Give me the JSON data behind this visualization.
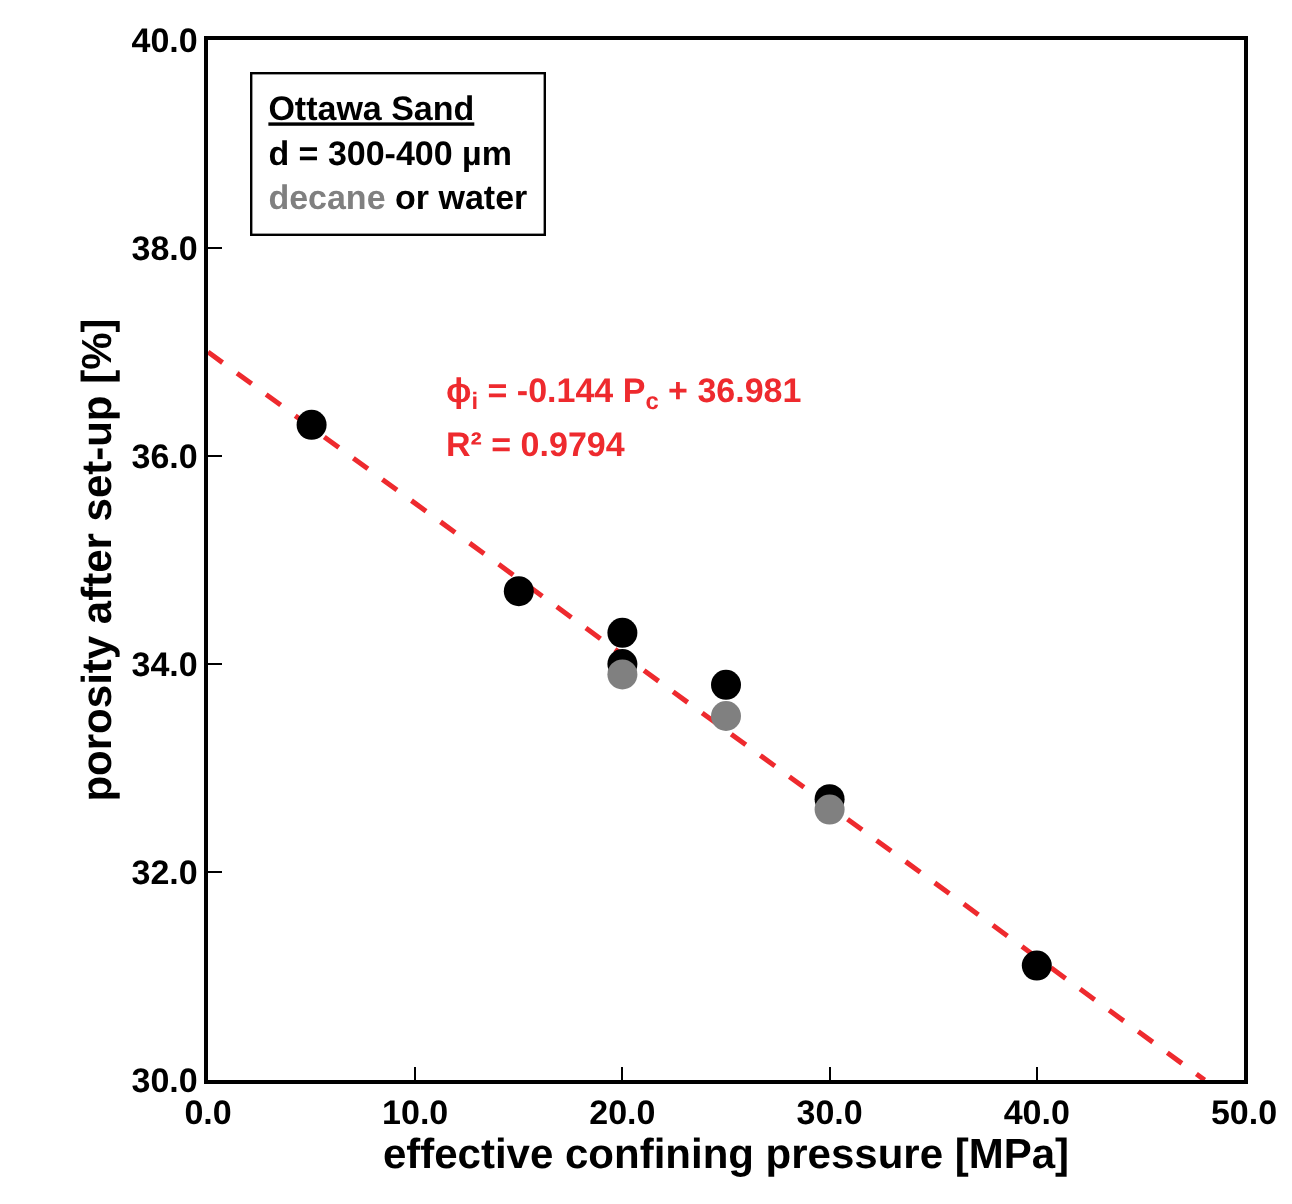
{
  "chart_data": {
    "type": "scatter",
    "xlabel": "effective confining pressure [MPa]",
    "ylabel": "porosity after set-up [%]",
    "xlim": [
      0,
      50
    ],
    "ylim": [
      30,
      40
    ],
    "xticks": [
      {
        "value": 0,
        "label": "0.0"
      },
      {
        "value": 10,
        "label": "10.0"
      },
      {
        "value": 20,
        "label": "20.0"
      },
      {
        "value": 30,
        "label": "30.0"
      },
      {
        "value": 40,
        "label": "40.0"
      },
      {
        "value": 50,
        "label": "50.0"
      }
    ],
    "yticks": [
      {
        "value": 30,
        "label": "30.0"
      },
      {
        "value": 32,
        "label": "32.0"
      },
      {
        "value": 34,
        "label": "34.0"
      },
      {
        "value": 36,
        "label": "36.0"
      },
      {
        "value": 38,
        "label": "38.0"
      },
      {
        "value": 40,
        "label": "40.0"
      }
    ],
    "marker": "circle",
    "grid": false,
    "legend": "top left",
    "series": [
      {
        "name": "water",
        "color": "#000000",
        "x": [
          5,
          15,
          20,
          20,
          25,
          30,
          40
        ],
        "values": [
          36.3,
          34.7,
          34.3,
          34.0,
          33.8,
          32.7,
          31.1
        ]
      },
      {
        "name": "decane",
        "color": "#808080",
        "x": [
          20,
          25,
          30
        ],
        "values": [
          33.9,
          33.5,
          32.6
        ]
      },
      {
        "type": "line",
        "color": "#ee2a2e",
        "line_style": "dashed",
        "marker": "none",
        "x": [
          0,
          48.1
        ],
        "values": [
          37.0,
          30.0
        ]
      }
    ],
    "annotations": [
      "Ottawa Sand",
      "d = 300-400 µm",
      "or",
      "ϕ$_{i}$ = -0.144 P$_{c}$ + 36.981",
      "R² = 0.9794"
    ]
  }
}
